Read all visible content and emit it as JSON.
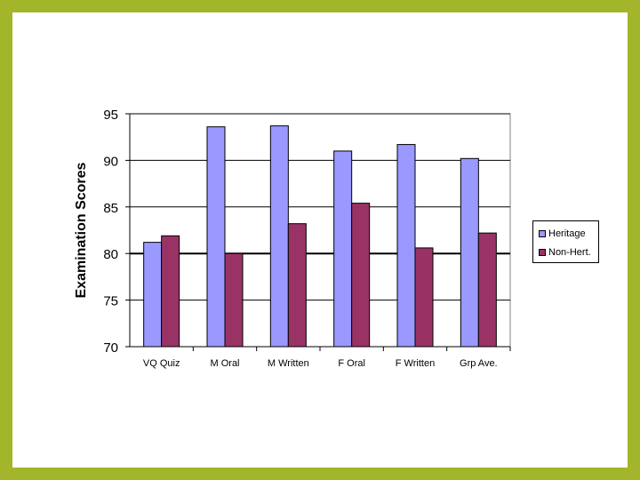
{
  "chart_data": {
    "type": "bar",
    "ylabel": "Examination Scores",
    "ylim": [
      70,
      95
    ],
    "yticks": [
      70,
      75,
      80,
      85,
      90,
      95
    ],
    "categories": [
      "VQ Quiz",
      "M Oral",
      "M Written",
      "F Oral",
      "F Written",
      "Grp Ave."
    ],
    "series": [
      {
        "name": "Heritage",
        "color": "#9999ff",
        "values": [
          81.2,
          93.6,
          93.7,
          91.0,
          91.7,
          90.2
        ]
      },
      {
        "name": "Non-Hert.",
        "color": "#993366",
        "values": [
          81.9,
          80.0,
          83.2,
          85.4,
          80.6,
          82.2
        ]
      }
    ],
    "grid": true,
    "legend": "right"
  }
}
